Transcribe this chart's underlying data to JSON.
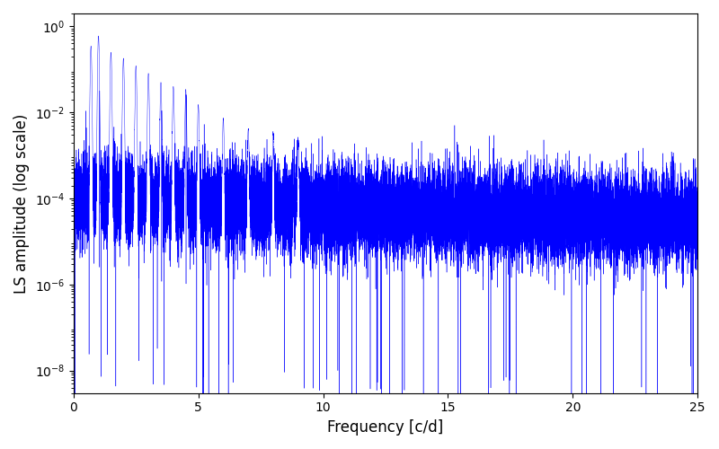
{
  "xlabel": "Frequency [c/d]",
  "ylabel": "LS amplitude (log scale)",
  "xlim": [
    0,
    25
  ],
  "ylim": [
    3e-09,
    2.0
  ],
  "line_color": "#0000FF",
  "line_width": 0.3,
  "figsize": [
    8.0,
    5.0
  ],
  "dpi": 100,
  "seed": 12345,
  "n_points": 20000,
  "background_color": "#ffffff"
}
